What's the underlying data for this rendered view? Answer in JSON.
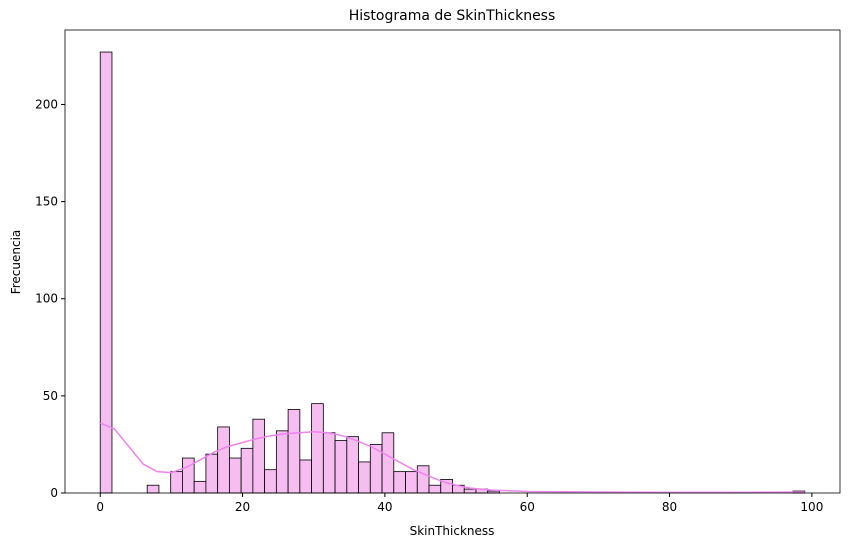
{
  "chart_data": {
    "type": "histogram",
    "title": "Histograma de SkinThickness",
    "x_label": "SkinThickness",
    "y_label": "Frecuencia",
    "bins": [
      0,
      1.65,
      3.3,
      4.95,
      6.6,
      8.25,
      9.9,
      11.55,
      13.2,
      14.85,
      16.5,
      18.15,
      19.8,
      21.45,
      23.1,
      24.75,
      26.4,
      28.05,
      29.7,
      31.35,
      33,
      34.65,
      36.3,
      37.95,
      39.6,
      41.25,
      42.9,
      44.55,
      46.2,
      47.85,
      49.5,
      51.15,
      52.8,
      54.45,
      56.1,
      57.75,
      59.4,
      61.05,
      62.7,
      64.35,
      66,
      67.65,
      69.3,
      70.95,
      72.6,
      74.25,
      75.9,
      77.55,
      79.2,
      80.85,
      82.5,
      84.15,
      85.8,
      87.45,
      89.1,
      90.75,
      92.4,
      94.05,
      95.7,
      97.35,
      99
    ],
    "values": [
      227,
      0,
      0,
      0,
      4,
      0,
      11,
      18,
      6,
      20,
      34,
      18,
      23,
      38,
      12,
      32,
      43,
      17,
      46,
      31,
      27,
      29,
      16,
      25,
      31,
      11,
      11,
      14,
      4,
      7,
      4,
      2,
      2,
      1,
      0,
      0,
      0,
      0,
      0,
      0,
      0,
      0,
      0,
      0,
      0,
      0,
      0,
      0,
      0,
      0,
      0,
      0,
      0,
      0,
      0,
      0,
      0,
      0,
      0,
      1
    ],
    "color": "#f5bdf0",
    "edge_color": "#000000",
    "kde": {
      "color": "#ee82ee",
      "x": [
        0,
        2,
        4,
        6,
        8,
        10,
        12,
        14,
        16,
        18,
        20,
        22,
        24,
        26,
        28,
        30,
        32,
        34,
        36,
        38,
        40,
        42,
        44,
        46,
        48,
        50,
        52,
        55,
        60,
        70,
        80,
        90,
        99
      ],
      "values": [
        36,
        33,
        24,
        15,
        11,
        10.5,
        13,
        17,
        21,
        24,
        26,
        28,
        29.5,
        30.5,
        31,
        31.5,
        31,
        29.5,
        27,
        24,
        20,
        16,
        12,
        9,
        6,
        4,
        2.5,
        1.5,
        0.8,
        0.5,
        0.3,
        0.3,
        0.5
      ]
    },
    "xlim": [
      -4.95,
      103.95
    ],
    "xticks": [
      0,
      20,
      40,
      60,
      80,
      100
    ],
    "ylim": [
      0,
      238.35
    ],
    "yticks": [
      0,
      50,
      100,
      150,
      200
    ]
  }
}
